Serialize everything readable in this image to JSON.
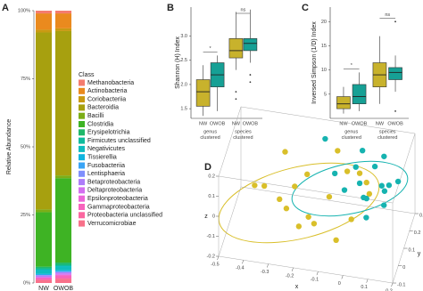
{
  "chart_data": [
    {
      "type": "bar",
      "stacked": true,
      "panel": "A",
      "ylabel": "Relative Abundance",
      "legend_title": "Class",
      "categories": [
        "NW",
        "OWOB"
      ],
      "ylim": [
        0,
        100
      ],
      "yticks": [
        {
          "value": 0,
          "label": "0%"
        },
        {
          "value": 25,
          "label": "25%"
        },
        {
          "value": 50,
          "label": "50%"
        },
        {
          "value": 75,
          "label": "75%"
        },
        {
          "value": 100,
          "label": "100%"
        }
      ],
      "series": [
        {
          "name": "Methanobacteria",
          "color": "#f47c6e",
          "values": [
            1,
            1
          ]
        },
        {
          "name": "Actinobacteria",
          "color": "#ea8a1e",
          "values": [
            6,
            5.5
          ]
        },
        {
          "name": "Coriobacteriia",
          "color": "#c99a12",
          "values": [
            1,
            1
          ]
        },
        {
          "name": "Bacteroidia",
          "color": "#a7a00f",
          "values": [
            65,
            53
          ]
        },
        {
          "name": "Bacilli",
          "color": "#7cae17",
          "values": [
            1,
            1
          ]
        },
        {
          "name": "Clostridia",
          "color": "#3eb324",
          "values": [
            20,
            31
          ]
        },
        {
          "name": "Erysipelotrichia",
          "color": "#1fb86a",
          "values": [
            0.6,
            0.8
          ]
        },
        {
          "name": "Firmicutes unclassified",
          "color": "#10bc9c",
          "values": [
            0.5,
            0.5
          ]
        },
        {
          "name": "Negativicutes",
          "color": "#0fbdbf",
          "values": [
            1.5,
            1.5
          ]
        },
        {
          "name": "Tissierellia",
          "color": "#10b5e0",
          "values": [
            0.3,
            0.3
          ]
        },
        {
          "name": "Fusobacteriia",
          "color": "#3aa4f5",
          "values": [
            0.2,
            0.3
          ]
        },
        {
          "name": "Lentisphaeria",
          "color": "#7f8ffd",
          "values": [
            0.1,
            0.1
          ]
        },
        {
          "name": "Betaproteobacteria",
          "color": "#ad7cf9",
          "values": [
            0.5,
            0.5
          ]
        },
        {
          "name": "Deltaproteobacteria",
          "color": "#d36ff0",
          "values": [
            0.3,
            0.5
          ]
        },
        {
          "name": "Epsilonproteobacteria",
          "color": "#ec66d8",
          "values": [
            0.2,
            0.2
          ]
        },
        {
          "name": "Gammaproteobacteria",
          "color": "#f764bd",
          "values": [
            0.5,
            1
          ]
        },
        {
          "name": "Proteobacteria unclassified",
          "color": "#fb67a0",
          "values": [
            0.3,
            0.3
          ]
        },
        {
          "name": "Verrucomicrobiae",
          "color": "#f8718a",
          "values": [
            1,
            1.5
          ]
        }
      ]
    },
    {
      "type": "box",
      "panel": "B",
      "ylabel": "Shannon (H) Index",
      "categories": [
        "NW",
        "OWOB",
        "NW",
        "OWOB"
      ],
      "colors": [
        "#c8b22c",
        "#16a095",
        "#c8b22c",
        "#16a095"
      ],
      "groups": [
        [
          "genus",
          "clustered"
        ],
        [
          "species",
          "clustered"
        ]
      ],
      "annotations": [
        "*",
        "ns"
      ],
      "ylim": [
        1.3,
        3.6
      ],
      "yticks": [
        1.5,
        {
          "value": 2,
          "label": "2.0"
        },
        2.5,
        {
          "value": 3,
          "label": "3.0"
        }
      ],
      "boxes": [
        {
          "min": 1.35,
          "q1": 1.55,
          "median": 1.85,
          "q3": 2.1,
          "max": 2.4,
          "outliers": []
        },
        {
          "min": 1.45,
          "q1": 1.95,
          "median": 2.2,
          "q3": 2.45,
          "max": 2.6,
          "outliers": []
        },
        {
          "min": 2.3,
          "q1": 2.55,
          "median": 2.7,
          "q3": 2.95,
          "max": 3.5,
          "outliers": [
            1.85,
            1.7
          ]
        },
        {
          "min": 2.45,
          "q1": 2.7,
          "median": 2.85,
          "q3": 2.95,
          "max": 3.55,
          "outliers": [
            2.2,
            2.05
          ]
        }
      ]
    },
    {
      "type": "box",
      "panel": "C",
      "ylabel": "Inversed Simpson (1/D) Index",
      "categories": [
        "NW",
        "OWOB",
        "NW",
        "OWOB"
      ],
      "colors": [
        "#c8b22c",
        "#16a095",
        "#c8b22c",
        "#16a095"
      ],
      "groups": [
        [
          "genus",
          "clustered"
        ],
        [
          "species",
          "clustered"
        ]
      ],
      "annotations": [
        "*",
        "ns"
      ],
      "ylim": [
        0,
        23
      ],
      "yticks": [
        5,
        10,
        15,
        20
      ],
      "boxes": [
        {
          "min": 1,
          "q1": 2,
          "median": 3,
          "q3": 4.5,
          "max": 6.5,
          "outliers": []
        },
        {
          "min": 1.5,
          "q1": 3,
          "median": 4.5,
          "q3": 7,
          "max": 9.5,
          "outliers": []
        },
        {
          "min": 3,
          "q1": 6.5,
          "median": 9,
          "q3": 11.5,
          "max": 17,
          "outliers": []
        },
        {
          "min": 5.5,
          "q1": 8,
          "median": 9.5,
          "q3": 10.5,
          "max": 13,
          "outliers": [
            20,
            1.5
          ]
        }
      ]
    },
    {
      "type": "scatter3d",
      "panel": "D",
      "xlabel": "x",
      "ylabel": "y",
      "zlabel": "z",
      "xlim": [
        -0.5,
        0.2
      ],
      "ylim": [
        -0.1,
        0.3
      ],
      "zlim": [
        -0.2,
        0.2
      ],
      "xticks": [
        -0.5,
        -0.4,
        -0.3,
        -0.2,
        -0.1,
        0,
        0.1,
        0.2
      ],
      "yticks": [
        -0.1,
        0,
        0.1,
        0.2,
        0.3
      ],
      "zticks": [
        -0.2,
        -0.1,
        0,
        0.1,
        0.2
      ],
      "series": [
        {
          "color": "#d9bf2a",
          "x": [
            -0.35,
            -0.3,
            -0.25,
            -0.2,
            -0.15,
            -0.1,
            -0.05,
            0,
            0.05,
            -0.3,
            -0.4,
            -0.2,
            -0.1,
            0,
            -0.25,
            -0.15,
            0.05,
            -0.05
          ],
          "y": [
            0.05,
            0.1,
            0,
            0.15,
            0.05,
            0.1,
            0.2,
            0.05,
            0.15,
            0.2,
            0.1,
            0,
            0.25,
            0.2,
            0.15,
            -0.05,
            0.1,
            0
          ],
          "z": [
            0.05,
            -0.05,
            0,
            0.05,
            -0.1,
            0,
            0.05,
            -0.05,
            0,
            0.1,
            0,
            -0.08,
            0.1,
            0.05,
            -0.02,
            0.02,
            0.1,
            -0.12
          ]
        },
        {
          "color": "#16b3b0",
          "x": [
            0,
            0.05,
            0.1,
            0.05,
            -0.05,
            0.1,
            0,
            0.08,
            -0.1,
            0.12,
            0.02,
            -0.02,
            0.15,
            0.06,
            -0.15,
            0.1
          ],
          "y": [
            0.2,
            0.25,
            0.2,
            0.1,
            0.15,
            0.15,
            0.25,
            0.28,
            0.2,
            0.1,
            0.18,
            0.22,
            0.22,
            0.05,
            0.25,
            0.28
          ],
          "z": [
            0,
            0.05,
            -0.02,
            0.02,
            0,
            0.05,
            0.12,
            0.08,
            0.03,
            0,
            -0.05,
            0.06,
            0.02,
            -0.03,
            0.15,
            -0.06
          ]
        }
      ]
    }
  ]
}
